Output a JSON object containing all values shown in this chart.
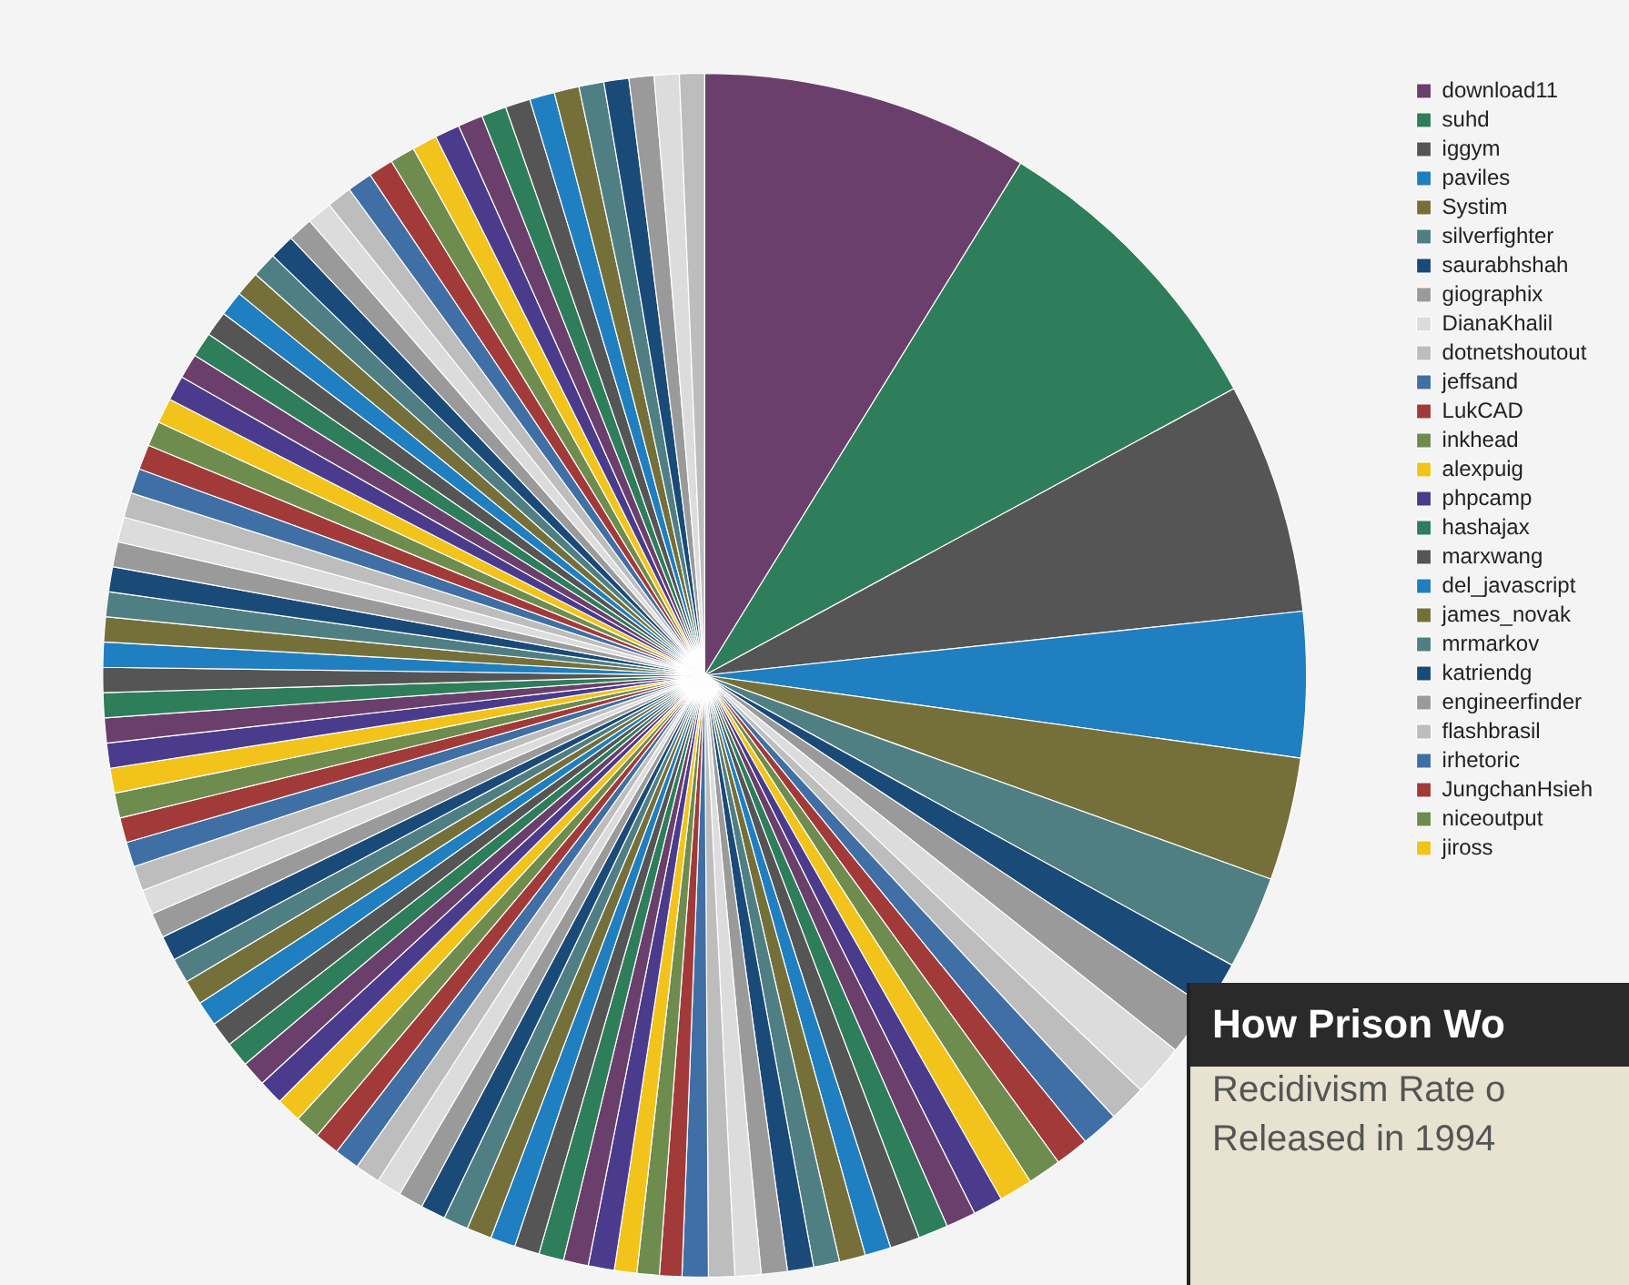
{
  "chart_data": {
    "type": "pie",
    "categories": [
      "download11",
      "suhd",
      "iggym",
      "paviles",
      "Systim",
      "silverfighter",
      "saurabhshah",
      "giographix",
      "DianaKhalil",
      "dotnetshoutout",
      "jeffsand",
      "LukCAD",
      "inkhead",
      "alexpuig",
      "phpcamp",
      null,
      "hashajax",
      "marxwang",
      "del_javascript",
      "james_novak",
      "mrmarkov",
      "katriendg",
      "engineerfinder",
      null,
      "flashbrasil",
      "irhetoric",
      "JungchanHsieh",
      "niceoutput",
      "jiross",
      null,
      null,
      null,
      null,
      null,
      null,
      null,
      null,
      null,
      null,
      null,
      null,
      null,
      null,
      null,
      null,
      null,
      null,
      null,
      null,
      null,
      null,
      null,
      null,
      null,
      null,
      null,
      null,
      null,
      null,
      null,
      null,
      null,
      null,
      null,
      null,
      null,
      null,
      null,
      null,
      null,
      null,
      null,
      null,
      null,
      null,
      null,
      null,
      null,
      null,
      null,
      null,
      null,
      null,
      null,
      null,
      null,
      null,
      null,
      null,
      null,
      null,
      null,
      null,
      null,
      null,
      null,
      null,
      null,
      null,
      null
    ],
    "values": [
      8.8,
      8.3,
      6.2,
      3.9,
      3.3,
      2.5,
      1.3,
      1.4,
      1.4,
      1.0,
      1.0,
      0.9,
      0.9,
      0.9,
      0.8,
      0.8,
      0.8,
      0.8,
      0.7,
      0.7,
      0.7,
      0.7,
      0.7,
      0.7,
      0.7,
      0.7,
      0.6,
      0.6,
      0.6,
      0.7,
      0.67,
      0.67,
      0.67,
      0.67,
      0.67,
      0.67,
      0.67,
      0.67,
      0.67,
      0.67,
      0.67,
      0.67,
      0.67,
      0.67,
      0.67,
      0.67,
      0.67,
      0.67,
      0.67,
      0.67,
      0.67,
      0.67,
      0.67,
      0.67,
      0.67,
      0.67,
      0.67,
      0.67,
      0.67,
      0.67,
      0.67,
      0.67,
      0.67,
      0.67,
      0.67,
      0.67,
      0.67,
      0.67,
      0.67,
      0.67,
      0.67,
      0.67,
      0.67,
      0.67,
      0.67,
      0.67,
      0.67,
      0.67,
      0.67,
      0.67,
      0.67,
      0.67,
      0.67,
      0.67,
      0.67,
      0.67,
      0.67,
      0.67,
      0.67,
      0.67,
      0.67,
      0.67,
      0.67,
      0.67,
      0.67,
      0.67,
      0.67,
      0.67,
      0.67,
      0.67
    ],
    "colors": [
      "#6b3f6b",
      "#2e7d5b",
      "#555555",
      "#1f7fc0",
      "#75703a",
      "#4f7f82",
      "#1a4a78",
      "#9a9a9a",
      "#dcdcdc",
      "#bdbdbd",
      "#3f6fa5",
      "#a33a3a",
      "#6e8c4e",
      "#f2c31a",
      "#4b3b8c",
      "#6b3f6b",
      "#2e7d5b",
      "#555555",
      "#1f7fc0",
      "#75703a",
      "#4f7f82",
      "#1a4a78",
      "#9a9a9a",
      "#dcdcdc",
      "#bdbdbd",
      "#3f6fa5",
      "#a33a3a",
      "#6e8c4e",
      "#f2c31a",
      "#4b3b8c",
      "#6b3f6b",
      "#2e7d5b",
      "#555555",
      "#1f7fc0",
      "#75703a",
      "#4f7f82",
      "#1a4a78",
      "#9a9a9a",
      "#dcdcdc",
      "#bdbdbd",
      "#3f6fa5",
      "#a33a3a",
      "#6e8c4e",
      "#f2c31a",
      "#4b3b8c",
      "#6b3f6b",
      "#2e7d5b",
      "#555555",
      "#1f7fc0",
      "#75703a",
      "#4f7f82",
      "#1a4a78",
      "#9a9a9a",
      "#dcdcdc",
      "#bdbdbd",
      "#3f6fa5",
      "#a33a3a",
      "#6e8c4e",
      "#f2c31a",
      "#4b3b8c",
      "#6b3f6b",
      "#2e7d5b",
      "#555555",
      "#1f7fc0",
      "#75703a",
      "#4f7f82",
      "#1a4a78",
      "#9a9a9a",
      "#dcdcdc",
      "#bdbdbd",
      "#3f6fa5",
      "#a33a3a",
      "#6e8c4e",
      "#f2c31a",
      "#4b3b8c",
      "#6b3f6b",
      "#2e7d5b",
      "#555555",
      "#1f7fc0",
      "#75703a",
      "#4f7f82",
      "#1a4a78",
      "#9a9a9a",
      "#dcdcdc",
      "#bdbdbd",
      "#3f6fa5",
      "#a33a3a",
      "#6e8c4e",
      "#f2c31a",
      "#4b3b8c",
      "#6b3f6b",
      "#2e7d5b",
      "#555555",
      "#1f7fc0",
      "#75703a",
      "#4f7f82",
      "#1a4a78",
      "#9a9a9a",
      "#dcdcdc",
      "#bdbdbd"
    ],
    "legend": "right",
    "annotations": [
      "How Prison Wo",
      "Recidivism Rate o",
      "Released in 1994"
    ]
  }
}
